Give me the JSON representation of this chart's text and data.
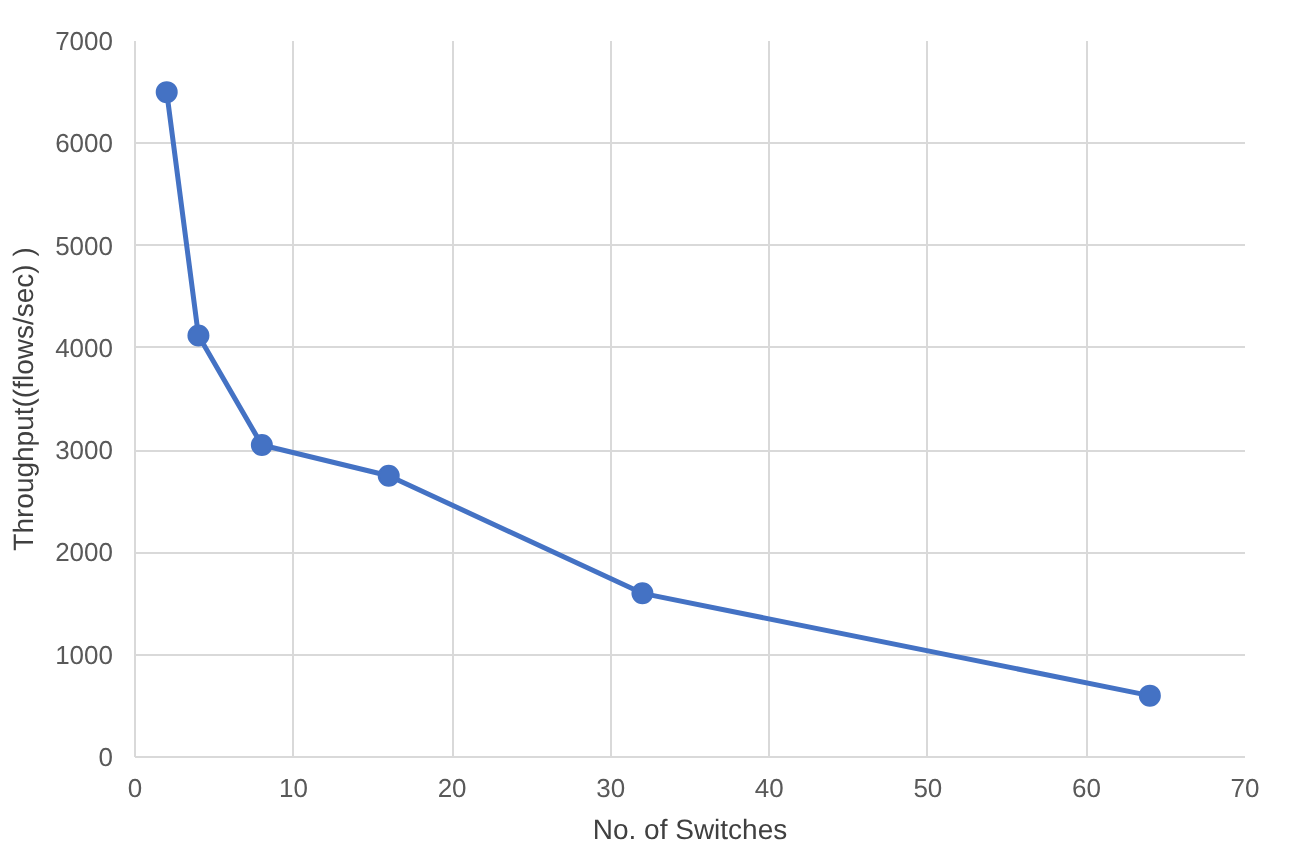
{
  "chart_data": {
    "type": "line",
    "xlabel": "No. of Switches",
    "ylabel": "Throughput((flows/sec) )",
    "x": [
      2,
      4,
      8,
      16,
      32,
      64
    ],
    "series": [
      {
        "color": "#4472c4",
        "values": [
          6500,
          4120,
          3050,
          2750,
          1600,
          600
        ]
      }
    ],
    "xlim": [
      0,
      70
    ],
    "xticks": [
      0,
      10,
      20,
      30,
      40,
      50,
      60,
      70
    ],
    "ylim": [
      0,
      7000
    ],
    "yticks": [
      0,
      1000,
      2000,
      3000,
      4000,
      5000,
      6000,
      7000
    ],
    "grid": true,
    "marker": "circle",
    "line_style": "solid"
  }
}
